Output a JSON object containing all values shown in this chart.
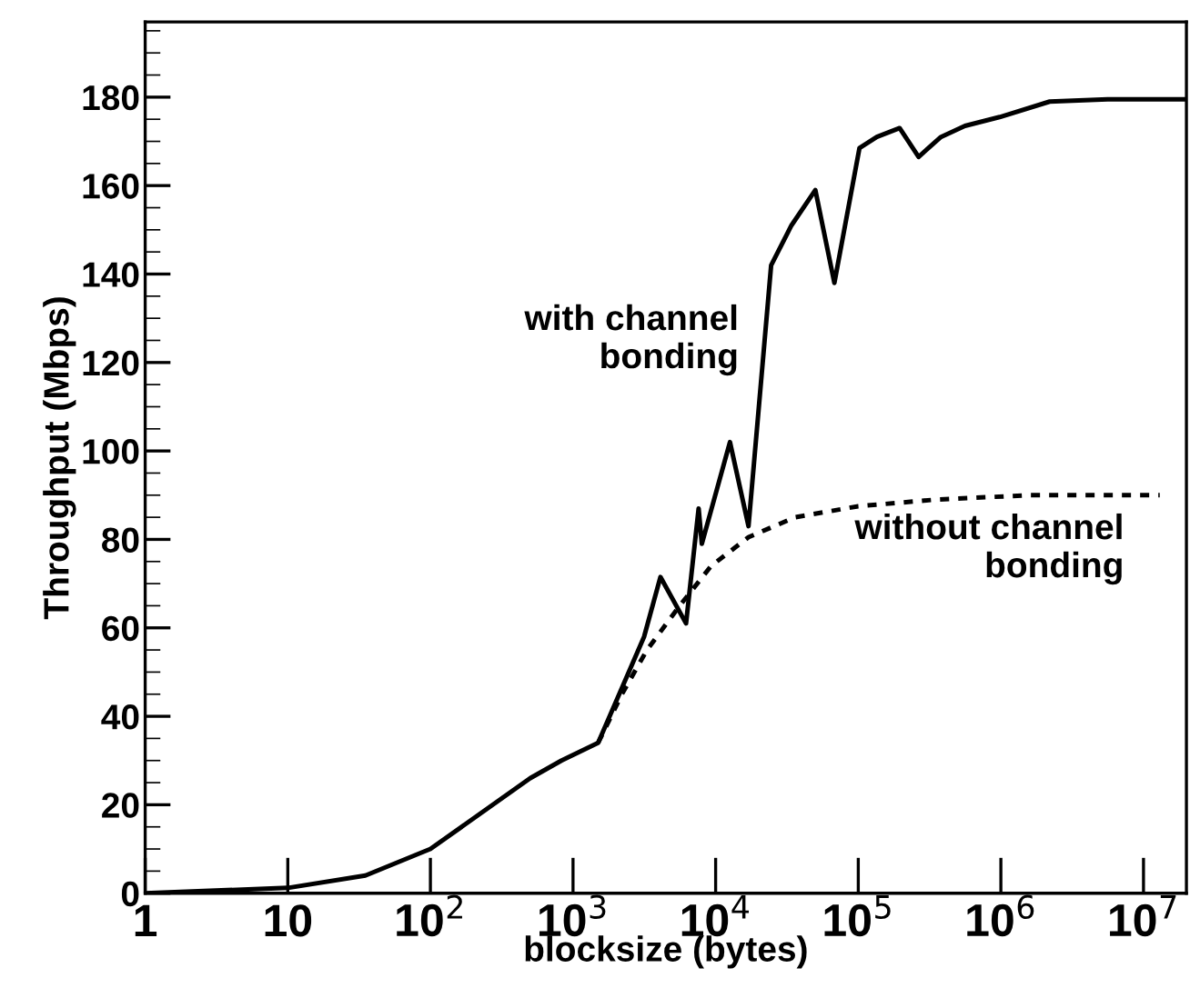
{
  "chart_data": {
    "type": "line",
    "xlabel": "blocksize (bytes)",
    "ylabel": "Throughput (Mbps)",
    "log": "x",
    "grid": false,
    "legend": false,
    "marker": "none",
    "xlim": [
      1,
      20000000
    ],
    "ylim": [
      0,
      197
    ],
    "xticks": [
      {
        "value": 1,
        "label": "1"
      },
      {
        "value": 10,
        "label": "10"
      },
      {
        "value": 100,
        "label": "10$^{2}$"
      },
      {
        "value": 1000,
        "label": "10$^{3}$"
      },
      {
        "value": 10000,
        "label": "10$^{4}$"
      },
      {
        "value": 100000,
        "label": "10$^{5}$"
      },
      {
        "value": 1000000,
        "label": "10$^{6}$"
      },
      {
        "value": 10000000,
        "label": "10$^{7}$"
      }
    ],
    "yticks": [
      0,
      20,
      40,
      60,
      80,
      100,
      120,
      140,
      160,
      180
    ],
    "series": [
      {
        "name": "with channel\nbonding",
        "color": "#000000",
        "line_style": "solid",
        "x": [
          1,
          10,
          35,
          100,
          500,
          830,
          1500,
          3150,
          4100,
          6200,
          7600,
          8000,
          12600,
          17000,
          24500,
          34000,
          50000,
          68000,
          102000,
          135000,
          195000,
          265000,
          380000,
          560000,
          980000,
          2200000,
          5600000,
          20000000
        ],
        "values": [
          0,
          1.2,
          4,
          10,
          26,
          30,
          34,
          58,
          71.5,
          61,
          87,
          79,
          102,
          83,
          142,
          151,
          159,
          138,
          168.5,
          171,
          173,
          166.5,
          171,
          173.5,
          175.5,
          179,
          179.5,
          179.5
        ]
      },
      {
        "name": "without channel\nbonding",
        "color": "#000000",
        "line_style": "dotted",
        "x": [
          1500,
          2200,
          3300,
          5600,
          9300,
          17000,
          36000,
          100000,
          350000,
          1600000,
          13000000
        ],
        "values": [
          34,
          45,
          55,
          65,
          74,
          80.5,
          85,
          87.5,
          89,
          90,
          90
        ]
      }
    ]
  }
}
